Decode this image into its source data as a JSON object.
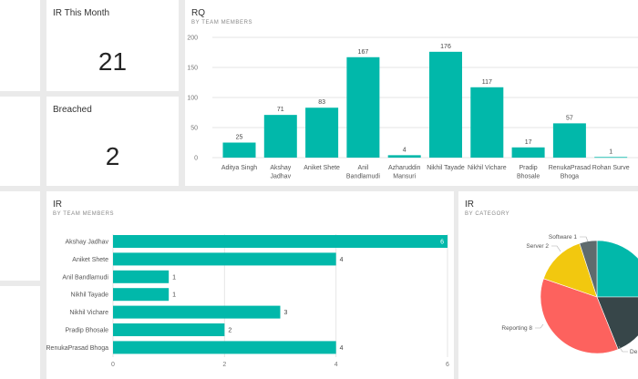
{
  "colors": {
    "teal": "#01b8aa",
    "dark": "#374649",
    "red": "#fd625e",
    "yellow": "#f2c80f",
    "gray": "#5f6b6d"
  },
  "kpi_ir_month": {
    "title": "IR This Month",
    "value": "21"
  },
  "kpi_breached": {
    "title": "Breached",
    "value": "2"
  },
  "rq_tile": {
    "title": "RQ",
    "subtitle": "BY TEAM MEMBERS"
  },
  "ir_members_tile": {
    "title": "IR",
    "subtitle": "BY TEAM MEMBERS"
  },
  "ir_category_tile": {
    "title": "IR",
    "subtitle": "BY CATEGORY"
  },
  "chart_data": [
    {
      "type": "bar",
      "orientation": "vertical",
      "title": "RQ",
      "subtitle": "BY TEAM MEMBERS",
      "categories": [
        "Aditya Singh",
        "Akshay Jadhav",
        "Aniket Shete",
        "Anil Bandlamudi",
        "Azharuddin Mansuri",
        "Nikhil Tayade",
        "Nikhil Vichare",
        "Pradip Bhosale",
        "RenukaPrasad Bhoga",
        "Rohan Surve"
      ],
      "category_lines": [
        [
          "Aditya Singh"
        ],
        [
          "Akshay",
          "Jadhav"
        ],
        [
          "Aniket Shete"
        ],
        [
          "Anil",
          "Bandlamudi"
        ],
        [
          "Azharuddin",
          "Mansuri"
        ],
        [
          "Nikhil Tayade"
        ],
        [
          "Nikhil Vichare"
        ],
        [
          "Pradip",
          "Bhosale"
        ],
        [
          "RenukaPrasad",
          "Bhoga"
        ],
        [
          "Rohan Surve"
        ]
      ],
      "values": [
        25,
        71,
        83,
        167,
        4,
        176,
        117,
        17,
        57,
        1
      ],
      "yticks": [
        0,
        50,
        100,
        150,
        200
      ],
      "ylim": [
        0,
        200
      ],
      "grid": true
    },
    {
      "type": "bar",
      "orientation": "horizontal",
      "title": "IR",
      "subtitle": "BY TEAM MEMBERS",
      "categories": [
        "Akshay Jadhav",
        "Aniket Shete",
        "Anil Bandlamudi",
        "Nikhil Tayade",
        "Nikhil Vichare",
        "Pradip Bhosale",
        "RenukaPrasad Bhoga"
      ],
      "values": [
        6,
        4,
        1,
        1,
        3,
        2,
        4
      ],
      "xticks": [
        0,
        2,
        4,
        6
      ],
      "xlim": [
        0,
        6
      ],
      "grid": true
    },
    {
      "type": "pie",
      "title": "IR",
      "subtitle": "BY CATEGORY",
      "slices": [
        {
          "label": "Software",
          "value": 1,
          "color": "#5f6b6d"
        },
        {
          "label": "Server",
          "value": 2,
          "color": "#f2c80f"
        },
        {
          "label": "Reporting",
          "value": 8,
          "color": "#fd625e"
        }
      ],
      "visible_labels": [
        "Software 1",
        "Server 2",
        "Reporting 8",
        "De"
      ]
    }
  ]
}
